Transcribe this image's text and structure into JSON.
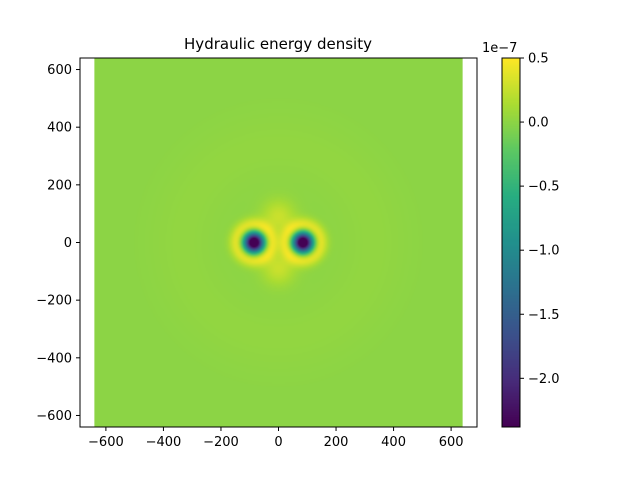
{
  "chart_data": {
    "type": "heatmap",
    "title": "Hydraulic energy density",
    "xlabel": "",
    "ylabel": "",
    "xlim": [
      -690,
      690
    ],
    "ylim": [
      -640,
      640
    ],
    "data_extent": {
      "x": [
        -640,
        640
      ],
      "y": [
        -640,
        640
      ]
    },
    "x_ticks": [
      -600,
      -400,
      -200,
      0,
      200,
      400,
      600
    ],
    "x_tick_labels": [
      "−600",
      "−400",
      "−200",
      "0",
      "200",
      "400",
      "600"
    ],
    "y_ticks": [
      -600,
      -400,
      -200,
      0,
      200,
      400,
      600
    ],
    "y_tick_labels": [
      "−600",
      "−400",
      "−200",
      "0",
      "200",
      "400",
      "600"
    ],
    "colorbar": {
      "colormap": "viridis",
      "range": [
        -2.38e-07,
        5e-08
      ],
      "offset_text": "1e−7",
      "ticks": [
        0.5,
        0.0,
        -0.5,
        -1.0,
        -1.5,
        -2.0
      ],
      "tick_labels": [
        "0.5",
        "0.0",
        "−0.5",
        "−1.0",
        "−1.5",
        "−2.0"
      ]
    },
    "features": [
      {
        "kind": "minimum",
        "x": -85,
        "y": 0,
        "value": -2.38e-07
      },
      {
        "kind": "minimum",
        "x": 85,
        "y": 0,
        "value": -2.38e-07
      },
      {
        "kind": "maximum",
        "x": 0,
        "y": 90,
        "value": 5e-08
      },
      {
        "kind": "maximum",
        "x": 0,
        "y": -90,
        "value": 5e-08
      }
    ],
    "background_value": 0.0
  }
}
